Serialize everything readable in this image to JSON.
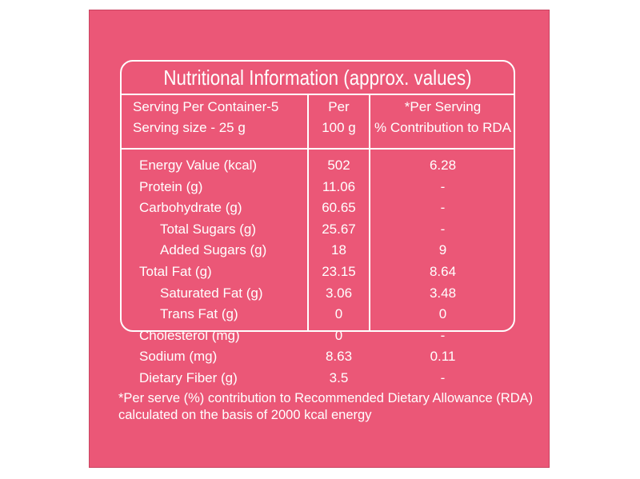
{
  "title": "Nutritional Information (approx. values)",
  "header": {
    "col1": [
      "Serving Per Container-5",
      "Serving size - 25 g"
    ],
    "col2": [
      "Per",
      "100 g"
    ],
    "col3": [
      "*Per Serving",
      "% Contribution to RDA"
    ]
  },
  "rows": [
    {
      "label": "Energy Value (kcal)",
      "per100": "502",
      "rda": "6.28",
      "indent": 0
    },
    {
      "label": "Protein (g)",
      "per100": "11.06",
      "rda": "-",
      "indent": 0
    },
    {
      "label": "Carbohydrate (g)",
      "per100": "60.65",
      "rda": "-",
      "indent": 0
    },
    {
      "label": "Total Sugars (g)",
      "per100": "25.67",
      "rda": "-",
      "indent": 1
    },
    {
      "label": "Added Sugars (g)",
      "per100": "18",
      "rda": "9",
      "indent": 1
    },
    {
      "label": "Total Fat (g)",
      "per100": "23.15",
      "rda": "8.64",
      "indent": 0
    },
    {
      "label": "Saturated Fat (g)",
      "per100": "3.06",
      "rda": "3.48",
      "indent": 1
    },
    {
      "label": "Trans Fat (g)",
      "per100": "0",
      "rda": "0",
      "indent": 1
    },
    {
      "label": "Cholesterol (mg)",
      "per100": "0",
      "rda": "-",
      "indent": 0
    },
    {
      "label": "Sodium (mg)",
      "per100": "8.63",
      "rda": "0.11",
      "indent": 0
    },
    {
      "label": "Dietary Fiber (g)",
      "per100": "3.5",
      "rda": "-",
      "indent": 0
    }
  ],
  "footnote": [
    "*Per serve (%) contribution to Recommended Dietary Allowance (RDA)",
    "calculated on the basis of 2000 kcal energy"
  ],
  "colors": {
    "background": "#eb5777",
    "text": "#ffffff"
  }
}
